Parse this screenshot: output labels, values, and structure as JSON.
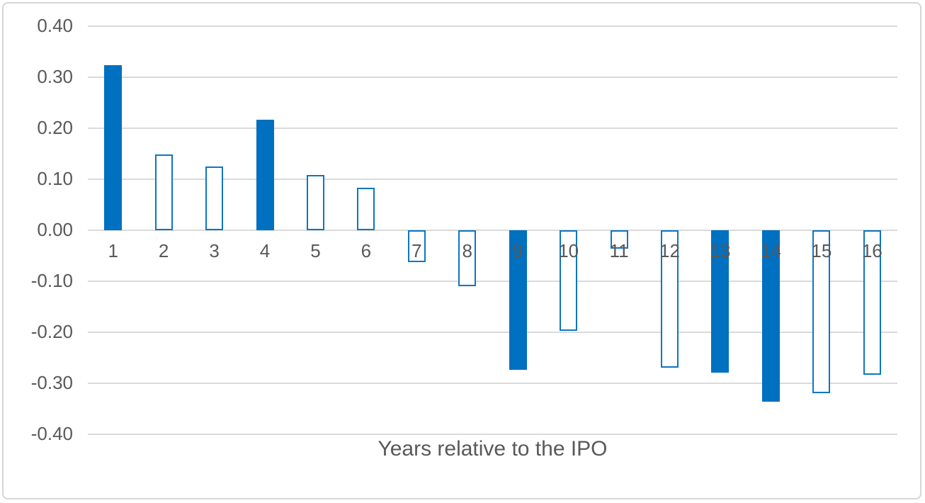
{
  "chart_data": {
    "type": "bar",
    "title": "",
    "xlabel": "Years relative to the IPO",
    "ylabel": "",
    "categories": [
      "1",
      "2",
      "3",
      "4",
      "5",
      "6",
      "7",
      "8",
      "9",
      "10",
      "11",
      "12",
      "13",
      "14",
      "15",
      "16"
    ],
    "values": [
      0.324,
      0.148,
      0.125,
      0.217,
      0.108,
      0.083,
      -0.063,
      -0.11,
      -0.273,
      -0.197,
      -0.036,
      -0.27,
      -0.279,
      -0.336,
      -0.32,
      -0.284
    ],
    "bar_styles": [
      "solid",
      "outline",
      "outline",
      "solid",
      "outline",
      "outline",
      "outline",
      "outline",
      "solid",
      "outline",
      "outline",
      "outline",
      "solid",
      "solid",
      "outline",
      "outline"
    ],
    "ylim": [
      -0.4,
      0.4
    ],
    "ytick_interval": 0.1,
    "ytick_labels": [
      "0.40",
      "0.30",
      "0.20",
      "0.10",
      "0.00",
      "-0.10",
      "-0.20",
      "-0.30",
      "-0.40"
    ],
    "grid": "horizontal",
    "legend": "none",
    "colors": {
      "bar_fill": "#0070c0",
      "bar_outline": "#0f76c2",
      "outline_bar_fill": "#ffffff",
      "gridline": "#dadada",
      "text": "#595959",
      "frame_border": "#d6d6d6",
      "background": "#ffffff"
    }
  }
}
